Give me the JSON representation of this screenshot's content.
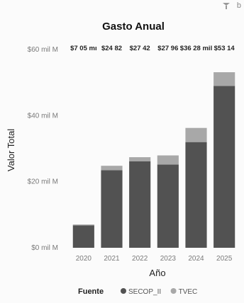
{
  "toolbar": {
    "filter_icon": "filter-icon",
    "more_icon": "ellipsis-icon"
  },
  "chart_data": {
    "type": "bar",
    "stacked": true,
    "title": "Gasto Anual",
    "xlabel": "Año",
    "ylabel": "Valor Total",
    "categories": [
      "2020",
      "2021",
      "2022",
      "2023",
      "2024",
      "2025"
    ],
    "series": [
      {
        "name": "SECOP_II",
        "color": "#525252",
        "values": [
          6.8,
          23.5,
          26.2,
          25.2,
          32.0,
          49.0
        ]
      },
      {
        "name": "TVEC",
        "color": "#a8a8a8",
        "values": [
          0.25,
          1.32,
          1.22,
          2.76,
          4.28,
          4.14
        ]
      }
    ],
    "data_labels": [
      "$7 05 mı",
      "$24 82",
      "$27 42",
      "$27 96",
      "$36 28 mil",
      "$53 14"
    ],
    "yticks": [
      {
        "value": 0,
        "label": "$0 mil M"
      },
      {
        "value": 20,
        "label": "$20 mil M"
      },
      {
        "value": 40,
        "label": "$40 mil M"
      },
      {
        "value": 60,
        "label": "$60 mil M"
      }
    ],
    "ylim": [
      0,
      60
    ],
    "grid": false,
    "legend": {
      "title": "Fuente",
      "position": "bottom",
      "items": [
        "SECOP_II",
        "TVEC"
      ]
    }
  }
}
